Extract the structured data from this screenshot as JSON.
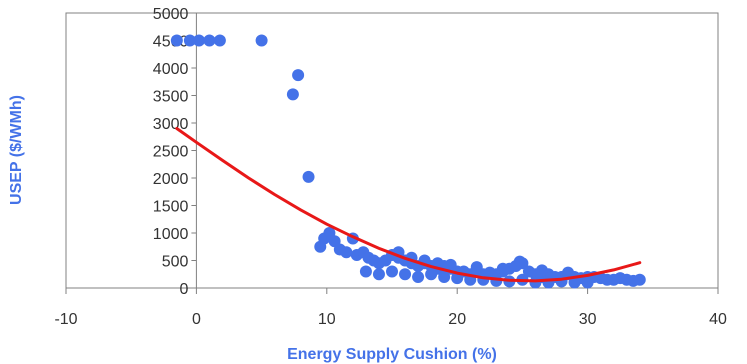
{
  "chart_data": {
    "type": "scatter",
    "xlabel": "Energy Supply Cushion (%)",
    "ylabel": "USEP ($/WMh)",
    "xlim": [
      -10,
      40
    ],
    "ylim": [
      0,
      5000
    ],
    "x_ticks": [
      -10,
      0,
      10,
      20,
      30,
      40
    ],
    "y_ticks": [
      0,
      500,
      1000,
      1500,
      2000,
      2500,
      3000,
      3500,
      4000,
      4500,
      5000
    ],
    "x_tick_labels": [
      "-10",
      "0",
      "10",
      "20",
      "30",
      "40"
    ],
    "y_tick_labels": [
      "0",
      "500",
      "1000",
      "1500",
      "2000",
      "2500",
      "3000",
      "3500",
      "4000",
      "4500",
      "5000"
    ],
    "grid": false,
    "legend": "none",
    "colors": {
      "points": "#4472e8",
      "trend": "#e81818",
      "axis": "#808080",
      "label": "#4472e8"
    },
    "series": [
      {
        "kind": "scatter",
        "x": [
          -1.5,
          -0.5,
          0.2,
          1.0,
          1.8,
          5.0,
          7.8,
          7.4,
          8.6,
          9.5,
          9.8,
          10.2,
          10.6,
          11.0,
          11.5,
          12.0,
          12.3,
          12.8,
          13.2,
          13.6,
          14.0,
          14.5,
          15.0,
          15.5,
          16.0,
          16.5,
          17.0,
          17.5,
          18.0,
          18.5,
          19.0,
          19.5,
          20.0,
          20.5,
          21.0,
          21.5,
          22.0,
          22.5,
          23.0,
          23.5,
          24.0,
          24.5,
          25.0,
          25.5,
          26.0,
          26.5,
          27.0,
          27.5,
          28.0,
          28.5,
          29.0,
          29.5,
          30.0,
          30.5,
          31.0,
          31.5,
          32.0,
          32.5,
          33.0,
          33.5,
          34.0,
          13.0,
          14.0,
          15.0,
          16.0,
          17.0,
          18.0,
          19.0,
          20.0,
          21.0,
          22.0,
          23.0,
          24.0,
          25.0,
          26.0,
          27.0,
          28.0,
          29.0,
          30.0,
          15.5,
          16.5,
          17.5,
          18.5,
          19.5,
          21.5,
          23.5,
          24.8,
          26.5,
          28.5
        ],
        "y": [
          4500,
          4500,
          4500,
          4500,
          4500,
          4500,
          3870,
          3520,
          2020,
          750,
          900,
          1000,
          850,
          700,
          650,
          900,
          600,
          650,
          550,
          500,
          450,
          500,
          600,
          550,
          500,
          450,
          400,
          450,
          400,
          350,
          400,
          350,
          300,
          300,
          250,
          300,
          250,
          280,
          250,
          300,
          350,
          400,
          450,
          300,
          250,
          200,
          250,
          200,
          200,
          250,
          200,
          180,
          200,
          200,
          180,
          150,
          150,
          180,
          150,
          130,
          150,
          300,
          250,
          300,
          250,
          200,
          250,
          200,
          180,
          150,
          150,
          130,
          120,
          150,
          100,
          100,
          120,
          100,
          100,
          650,
          550,
          500,
          450,
          420,
          380,
          350,
          480,
          320,
          280
        ]
      },
      {
        "kind": "trendline",
        "x": [
          -1.5,
          0,
          2,
          4,
          6,
          8,
          10,
          12,
          14,
          16,
          18,
          20,
          22,
          24,
          26,
          28,
          30,
          32,
          34
        ],
        "y": [
          2900,
          2650,
          2320,
          2000,
          1700,
          1420,
          1160,
          930,
          720,
          540,
          390,
          270,
          185,
          140,
          130,
          160,
          230,
          330,
          460
        ]
      }
    ]
  }
}
